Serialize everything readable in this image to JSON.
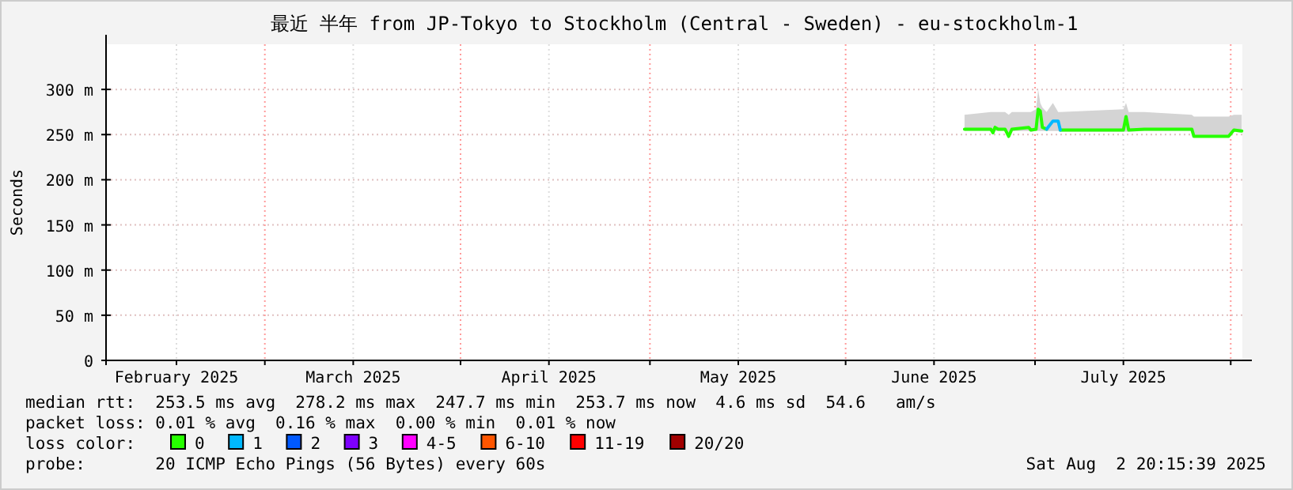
{
  "chart_data": {
    "type": "line",
    "title": "最近 半年 from JP-Tokyo to Stockholm (Central - Sweden) - eu-stockholm-1",
    "ylabel": "Seconds",
    "xlim": [
      "2025-02-03T20:15",
      "2025-08-02T20:15"
    ],
    "xticks": [
      {
        "value": "2025-02-15",
        "label": "February 2025"
      },
      {
        "value": "2025-03-15",
        "label": "March 2025"
      },
      {
        "value": "2025-04-15",
        "label": "April 2025"
      },
      {
        "value": "2025-05-15",
        "label": "May 2025"
      },
      {
        "value": "2025-06-15",
        "label": "June 2025"
      },
      {
        "value": "2025-07-15",
        "label": "July 2025"
      },
      {
        "value": "2025-03-01",
        "label": null
      },
      {
        "value": "2025-04-01",
        "label": null
      },
      {
        "value": "2025-05-01",
        "label": null
      },
      {
        "value": "2025-06-01",
        "label": null
      },
      {
        "value": "2025-07-01",
        "label": null
      },
      {
        "value": "2025-08-01",
        "label": null
      }
    ],
    "ylim": [
      0,
      350
    ],
    "yticks": [
      0,
      {
        "value": 50,
        "label": "50 m"
      },
      {
        "value": 100,
        "label": "100 m"
      },
      {
        "value": 150,
        "label": "150 m"
      },
      {
        "value": 200,
        "label": "200 m"
      },
      {
        "value": 250,
        "label": "250 m"
      },
      {
        "value": 300,
        "label": "300 m"
      }
    ],
    "grid": true,
    "legend": "bottom",
    "legend_title": "loss color:",
    "x": [
      "2025-06-19T20:00",
      "2025-06-24T00:00",
      "2025-06-24T08:00",
      "2025-06-24T16:00",
      "2025-06-25T04:00",
      "2025-06-26T06:00",
      "2025-06-26T20:00",
      "2025-06-27T08:00",
      "2025-06-30T00:00",
      "2025-06-30T08:00",
      "2025-07-01T04:00",
      "2025-07-01T12:00",
      "2025-07-01T20:00",
      "2025-07-02T04:00",
      "2025-07-02T20:00",
      "2025-07-03T20:00",
      "2025-07-04T16:00",
      "2025-07-05T00:00",
      "2025-07-15T00:00",
      "2025-07-15T10:00",
      "2025-07-15T20:00",
      "2025-07-18T08:00",
      "2025-07-25T20:00",
      "2025-07-26T04:00",
      "2025-07-31T16:00",
      "2025-08-01T12:00",
      "2025-08-02T18:00"
    ],
    "series": [
      {
        "type": "area",
        "color": "#d4d4d4",
        "values": [
          null,
          null,
          null,
          null,
          null,
          null,
          null,
          null,
          null,
          null,
          null,
          null,
          null,
          null,
          null,
          null,
          null,
          null,
          null,
          null,
          null,
          null,
          null,
          null,
          null,
          null,
          null
        ],
        "lower": [
          254,
          254,
          250,
          254,
          254,
          254,
          247,
          254,
          254,
          253,
          254,
          254,
          254,
          254,
          254,
          254,
          254,
          253,
          253,
          253,
          253,
          254,
          254,
          247,
          247,
          253,
          252
        ],
        "upper": [
          272,
          275,
          275,
          275,
          275,
          275,
          272,
          275,
          275,
          275,
          278,
          300,
          285,
          280,
          275,
          285,
          275,
          275,
          278,
          285,
          275,
          275,
          272,
          270,
          270,
          272,
          272
        ]
      },
      {
        "name": "0",
        "color": "#26ff00",
        "values": [
          256,
          256,
          252,
          258,
          256,
          256,
          248,
          256,
          258,
          255,
          256,
          278,
          276,
          258,
          256,
          null,
          null,
          255,
          255,
          270,
          255,
          256,
          256,
          248,
          248,
          255,
          254
        ]
      },
      {
        "name": "1",
        "color": "#00b8ff",
        "values": [
          null,
          null,
          null,
          null,
          null,
          null,
          null,
          null,
          null,
          null,
          null,
          null,
          null,
          null,
          256,
          265,
          265,
          255,
          null,
          null,
          null,
          null,
          null,
          null,
          null,
          null,
          null
        ]
      },
      {
        "name": "2",
        "color": "#0059ff",
        "values": [
          null,
          null,
          null,
          null,
          null,
          null,
          null,
          null,
          null,
          null,
          null,
          null,
          null,
          null,
          null,
          null,
          null,
          null,
          null,
          null,
          null,
          null,
          null,
          null,
          null,
          null,
          null
        ]
      },
      {
        "name": "3",
        "color": "#7e00ff",
        "values": [
          null,
          null,
          null,
          null,
          null,
          null,
          null,
          null,
          null,
          null,
          null,
          null,
          null,
          null,
          null,
          null,
          null,
          null,
          null,
          null,
          null,
          null,
          null,
          null,
          null,
          null,
          null
        ]
      },
      {
        "name": "4-5",
        "color": "#ff00ff",
        "values": [
          null,
          null,
          null,
          null,
          null,
          null,
          null,
          null,
          null,
          null,
          null,
          null,
          null,
          null,
          null,
          null,
          null,
          null,
          null,
          null,
          null,
          null,
          null,
          null,
          null,
          null,
          null
        ]
      },
      {
        "name": "6-10",
        "color": "#ff5500",
        "values": [
          null,
          null,
          null,
          null,
          null,
          null,
          null,
          null,
          null,
          null,
          null,
          null,
          null,
          null,
          null,
          null,
          null,
          null,
          null,
          null,
          null,
          null,
          null,
          null,
          null,
          null,
          null
        ]
      },
      {
        "name": "11-19",
        "color": "#ff0000",
        "values": [
          null,
          null,
          null,
          null,
          null,
          null,
          null,
          null,
          null,
          null,
          null,
          null,
          null,
          null,
          null,
          null,
          null,
          null,
          null,
          null,
          null,
          null,
          null,
          null,
          null,
          null,
          null
        ]
      },
      {
        "name": "20/20",
        "color": "#a10000",
        "values": [
          null,
          null,
          null,
          null,
          null,
          null,
          null,
          null,
          null,
          null,
          null,
          null,
          null,
          null,
          null,
          null,
          null,
          null,
          null,
          null,
          null,
          null,
          null,
          null,
          null,
          null,
          null
        ]
      }
    ],
    "annotations": [
      "median rtt:  253.5 ms avg  278.2 ms max  247.7 ms min  253.7 ms now  4.6 ms sd  54.6   am/s",
      "packet loss: 0.01 % avg  0.16 % max  0.00 % min  0.01 % now",
      "probe:       20 ICMP Echo Pings (56 Bytes) every 60s",
      "Sat Aug  2 20:15:39 2025"
    ]
  }
}
